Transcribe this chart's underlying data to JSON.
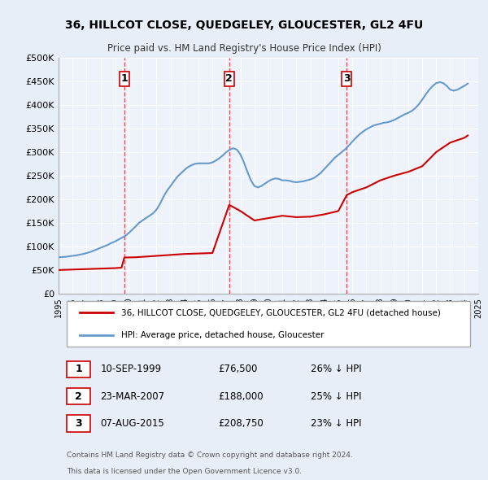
{
  "title": "36, HILLCOT CLOSE, QUEDGELEY, GLOUCESTER, GL2 4FU",
  "subtitle": "Price paid vs. HM Land Registry's House Price Index (HPI)",
  "xlabel": "",
  "ylabel": "",
  "background_color": "#e8eef8",
  "plot_background": "#eef2fb",
  "grid_color": "#ffffff",
  "sale_color": "#cc0000",
  "hpi_color": "#6699cc",
  "sale_dates": [
    1999.7,
    2007.2,
    2015.6
  ],
  "sale_prices": [
    76500,
    188000,
    208750
  ],
  "marker_labels": [
    "1",
    "2",
    "3"
  ],
  "vline_color": "#ff4444",
  "legend_sale_label": "36, HILLCOT CLOSE, QUEDGELEY, GLOUCESTER, GL2 4FU (detached house)",
  "legend_hpi_label": "HPI: Average price, detached house, Gloucester",
  "table_entries": [
    {
      "num": "1",
      "date": "10-SEP-1999",
      "price": "£76,500",
      "pct": "26% ↓ HPI"
    },
    {
      "num": "2",
      "date": "23-MAR-2007",
      "price": "£188,000",
      "pct": "25% ↓ HPI"
    },
    {
      "num": "3",
      "date": "07-AUG-2015",
      "price": "£208,750",
      "pct": "23% ↓ HPI"
    }
  ],
  "footnote1": "Contains HM Land Registry data © Crown copyright and database right 2024.",
  "footnote2": "This data is licensed under the Open Government Licence v3.0.",
  "ylim": [
    0,
    500000
  ],
  "yticks": [
    0,
    50000,
    100000,
    150000,
    200000,
    250000,
    300000,
    350000,
    400000,
    450000,
    500000
  ],
  "ytick_labels": [
    "£0",
    "£50K",
    "£100K",
    "£150K",
    "£200K",
    "£250K",
    "£300K",
    "£350K",
    "£400K",
    "£450K",
    "£500K"
  ],
  "hpi_years": [
    1995.0,
    1995.25,
    1995.5,
    1995.75,
    1996.0,
    1996.25,
    1996.5,
    1996.75,
    1997.0,
    1997.25,
    1997.5,
    1997.75,
    1998.0,
    1998.25,
    1998.5,
    1998.75,
    1999.0,
    1999.25,
    1999.5,
    1999.75,
    2000.0,
    2000.25,
    2000.5,
    2000.75,
    2001.0,
    2001.25,
    2001.5,
    2001.75,
    2002.0,
    2002.25,
    2002.5,
    2002.75,
    2003.0,
    2003.25,
    2003.5,
    2003.75,
    2004.0,
    2004.25,
    2004.5,
    2004.75,
    2005.0,
    2005.25,
    2005.5,
    2005.75,
    2006.0,
    2006.25,
    2006.5,
    2006.75,
    2007.0,
    2007.25,
    2007.5,
    2007.75,
    2008.0,
    2008.25,
    2008.5,
    2008.75,
    2009.0,
    2009.25,
    2009.5,
    2009.75,
    2010.0,
    2010.25,
    2010.5,
    2010.75,
    2011.0,
    2011.25,
    2011.5,
    2011.75,
    2012.0,
    2012.25,
    2012.5,
    2012.75,
    2013.0,
    2013.25,
    2013.5,
    2013.75,
    2014.0,
    2014.25,
    2014.5,
    2014.75,
    2015.0,
    2015.25,
    2015.5,
    2015.75,
    2016.0,
    2016.25,
    2016.5,
    2016.75,
    2017.0,
    2017.25,
    2017.5,
    2017.75,
    2018.0,
    2018.25,
    2018.5,
    2018.75,
    2019.0,
    2019.25,
    2019.5,
    2019.75,
    2020.0,
    2020.25,
    2020.5,
    2020.75,
    2021.0,
    2021.25,
    2021.5,
    2021.75,
    2022.0,
    2022.25,
    2022.5,
    2022.75,
    2023.0,
    2023.25,
    2023.5,
    2023.75,
    2024.0,
    2024.25
  ],
  "hpi_values": [
    77000,
    77500,
    78000,
    79000,
    80000,
    81000,
    82500,
    84000,
    86000,
    88000,
    91000,
    94000,
    97000,
    100000,
    103000,
    107000,
    110000,
    114000,
    118000,
    122000,
    128000,
    135000,
    142000,
    150000,
    155000,
    160000,
    165000,
    170000,
    178000,
    190000,
    205000,
    218000,
    228000,
    238000,
    248000,
    255000,
    262000,
    268000,
    272000,
    275000,
    276000,
    276000,
    276000,
    276000,
    278000,
    282000,
    287000,
    293000,
    300000,
    305000,
    308000,
    305000,
    295000,
    278000,
    258000,
    240000,
    228000,
    225000,
    228000,
    233000,
    238000,
    242000,
    244000,
    243000,
    240000,
    240000,
    239000,
    237000,
    236000,
    237000,
    238000,
    240000,
    242000,
    245000,
    250000,
    256000,
    264000,
    272000,
    280000,
    288000,
    294000,
    300000,
    306000,
    314000,
    322000,
    330000,
    337000,
    343000,
    348000,
    352000,
    356000,
    358000,
    360000,
    362000,
    363000,
    365000,
    368000,
    372000,
    376000,
    380000,
    383000,
    387000,
    393000,
    401000,
    411000,
    422000,
    432000,
    440000,
    446000,
    448000,
    446000,
    440000,
    432000,
    430000,
    432000,
    436000,
    440000,
    445000
  ],
  "sale_line_years": [
    1995.0,
    1995.5,
    1996.0,
    1996.5,
    1997.0,
    1997.5,
    1998.0,
    1998.5,
    1999.0,
    1999.5,
    1999.7,
    2000.5,
    2001.0,
    2001.5,
    2002.0,
    2003.0,
    2004.0,
    2005.0,
    2006.0,
    2007.2,
    2008.0,
    2009.0,
    2010.0,
    2011.0,
    2012.0,
    2013.0,
    2014.0,
    2015.0,
    2015.6,
    2016.0,
    2017.0,
    2018.0,
    2019.0,
    2020.0,
    2021.0,
    2022.0,
    2023.0,
    2024.0,
    2024.25
  ],
  "sale_line_values": [
    50000,
    50500,
    51000,
    51500,
    52000,
    52500,
    53000,
    53500,
    54000,
    55000,
    76500,
    77000,
    78000,
    79000,
    80000,
    82000,
    84000,
    85000,
    86000,
    188000,
    175000,
    155000,
    160000,
    165000,
    162000,
    163000,
    168000,
    175000,
    208750,
    215000,
    225000,
    240000,
    250000,
    258000,
    270000,
    300000,
    320000,
    330000,
    335000
  ],
  "xmin": 1995,
  "xmax": 2025
}
